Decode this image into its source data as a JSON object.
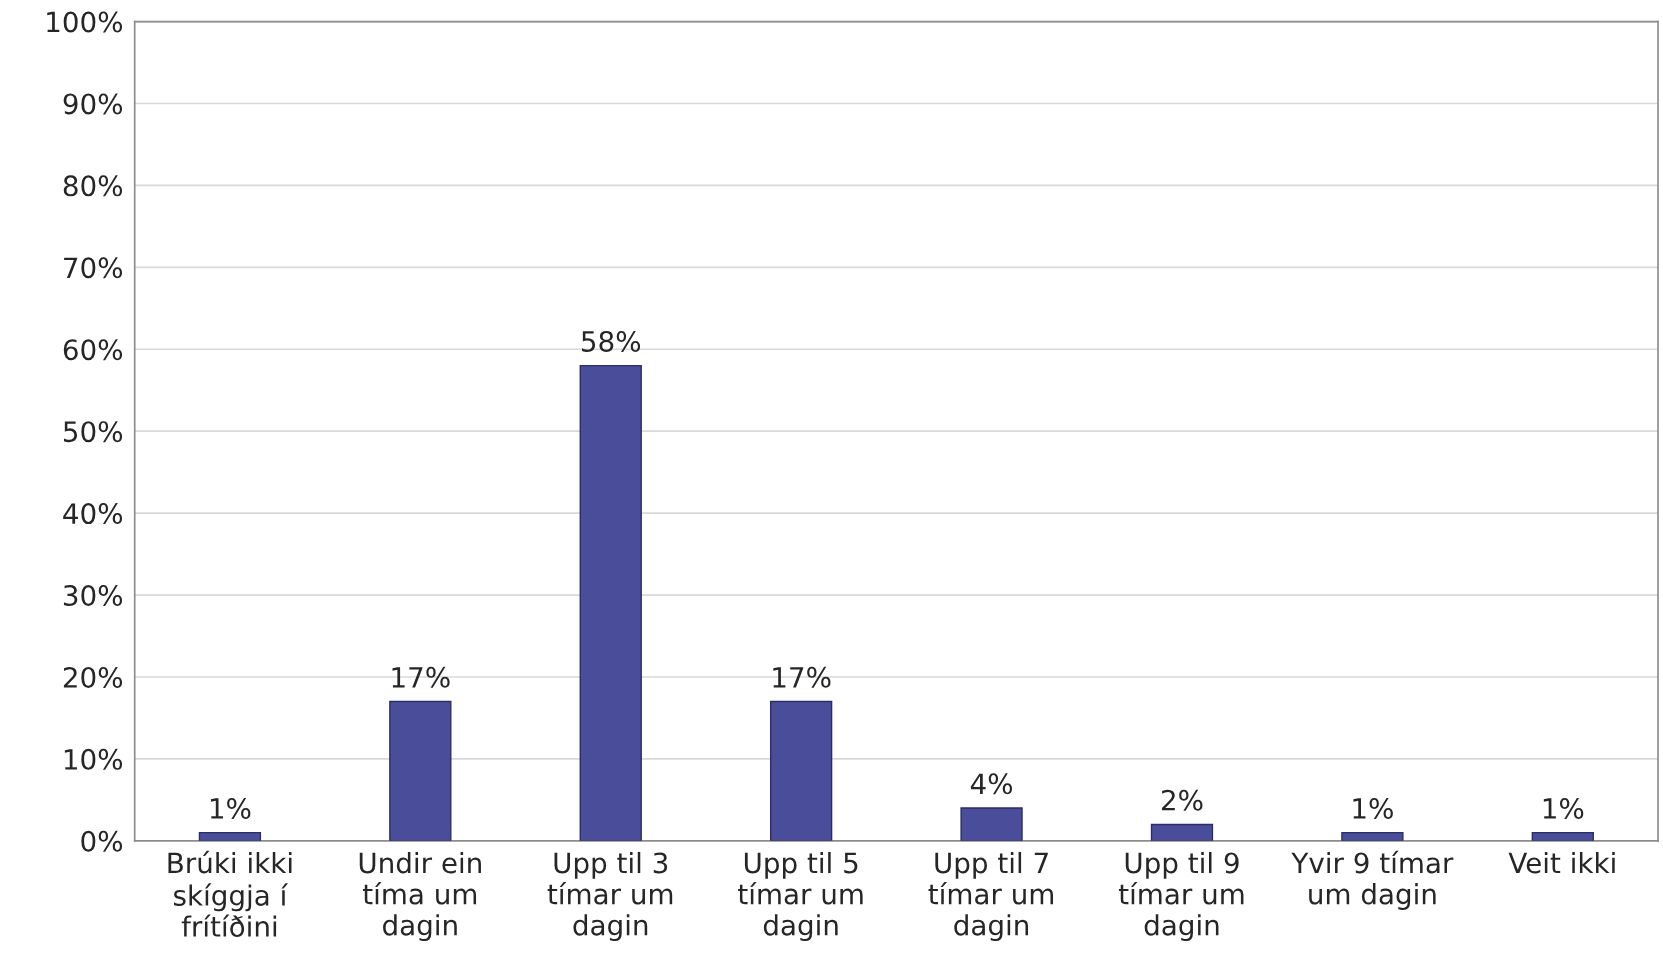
{
  "chart_data": {
    "type": "bar",
    "categories": [
      "Brúki ikki\nskíggja í\nfrítíðini",
      "Undir ein\ntíma um\ndagin",
      "Upp til 3\ntímar um\ndagin",
      "Upp til 5\ntímar um\ndagin",
      "Upp til 7\ntímar um\ndagin",
      "Upp til 9\ntímar um\ndagin",
      "Yvir 9 tímar\num dagin",
      "Veit ikki"
    ],
    "values": [
      1,
      17,
      58,
      17,
      4,
      2,
      1,
      1
    ],
    "value_labels": [
      "1%",
      "17%",
      "58%",
      "17%",
      "4%",
      "2%",
      "1%",
      "1%"
    ],
    "color": "#4a4e9a",
    "ylim": [
      0,
      100
    ],
    "yticks": [
      {
        "value": 0,
        "label": "0%"
      },
      {
        "value": 10,
        "label": "10%"
      },
      {
        "value": 20,
        "label": "20%"
      },
      {
        "value": 30,
        "label": "30%"
      },
      {
        "value": 40,
        "label": "40%"
      },
      {
        "value": 50,
        "label": "50%"
      },
      {
        "value": 60,
        "label": "60%"
      },
      {
        "value": 70,
        "label": "70%"
      },
      {
        "value": 80,
        "label": "80%"
      },
      {
        "value": 90,
        "label": "90%"
      },
      {
        "value": 100,
        "label": "100%"
      }
    ],
    "grid": "y",
    "legend": false
  }
}
